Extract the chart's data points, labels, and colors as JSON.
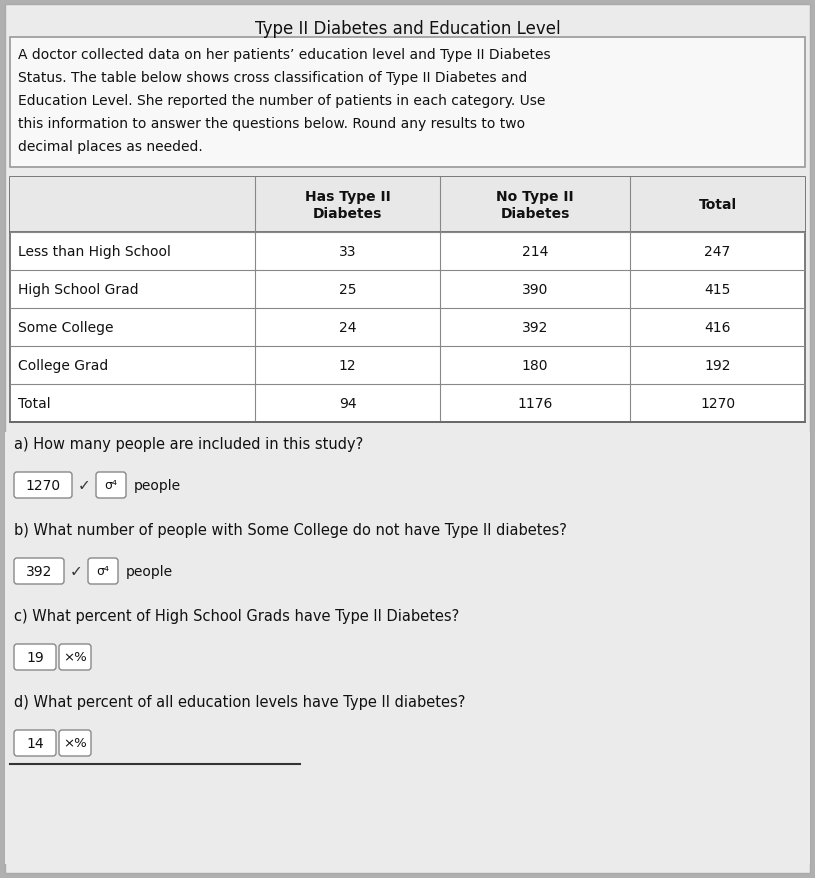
{
  "title": "Type II Diabetes and Education Level",
  "desc_lines": [
    "A doctor collected data on her patients’ education level and Type II Diabetes",
    "Status. The table below shows cross classification of Type II Diabetes and",
    "Education Level. She reported the number of patients in each category. Use",
    "this information to answer the questions below. Round any results to two",
    "decimal places as needed."
  ],
  "table_headers": [
    "",
    "Has Type II\nDiabetes",
    "No Type II\nDiabetes",
    "Total"
  ],
  "table_rows": [
    [
      "Less than High School",
      "33",
      "214",
      "247"
    ],
    [
      "High School Grad",
      "25",
      "390",
      "415"
    ],
    [
      "Some College",
      "24",
      "392",
      "416"
    ],
    [
      "College Grad",
      "12",
      "180",
      "192"
    ],
    [
      "Total",
      "94",
      "1176",
      "1270"
    ]
  ],
  "q_a": "a) How many people are included in this study?",
  "ans_a_val": "1270",
  "ans_a_check": "✓",
  "ans_a_sigma": "σ⁴",
  "ans_a_unit": "people",
  "q_b": "b) What number of people with Some College do not have Type II diabetes?",
  "ans_b_val": "392",
  "ans_b_check": "✓",
  "ans_b_sigma": "σ⁴",
  "ans_b_unit": "people",
  "q_c": "c) What percent of High School Grads have Type II Diabetes?",
  "ans_c_val": "19",
  "ans_c_suffix": "×%",
  "q_d": "d) What percent of all education levels have Type II diabetes?",
  "ans_d_val": "14",
  "ans_d_suffix": "×%",
  "bg_color": "#b0b0b0",
  "content_bg": "#f0f0f0",
  "table_cell_bg": "#ffffff",
  "table_border": "#888888",
  "text_color": "#111111",
  "desc_box_bg": "#ffffff",
  "answer_box_bg": "#ffffff"
}
